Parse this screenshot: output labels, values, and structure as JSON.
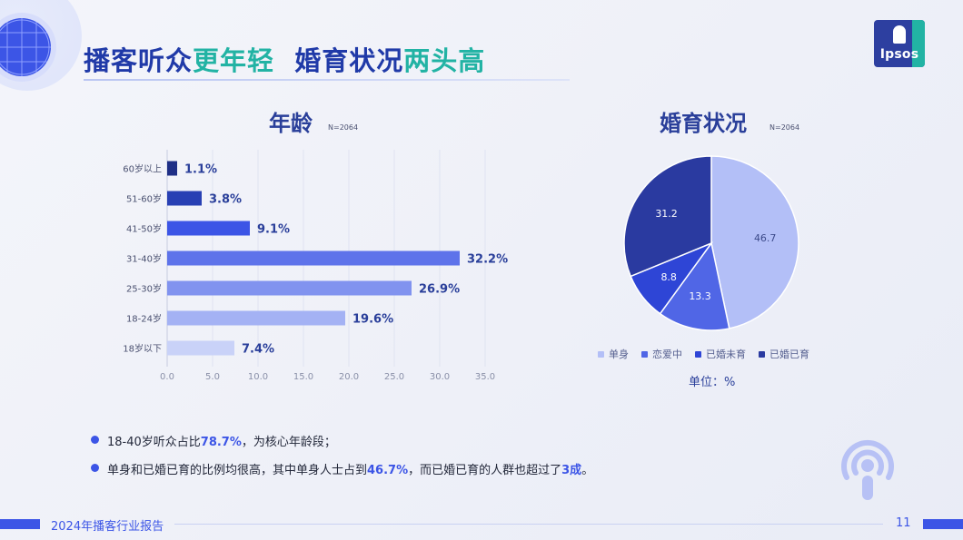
{
  "slide": {
    "title_parts": [
      "播客听众",
      "更年轻",
      "  婚育状况",
      "两头高"
    ],
    "footer": "2024年播客行业报告",
    "page_number": "11",
    "logo_text": "Ipsos",
    "accent_color": "#3c55e6",
    "highlight_color": "#22b3a4"
  },
  "age_chart": {
    "title": "年龄",
    "note": "N=2064"
  },
  "marital_chart": {
    "title": "婚育状况",
    "note": "N=2064",
    "unit": "单位：%"
  },
  "chart_data": [
    {
      "type": "bar",
      "orientation": "horizontal",
      "title": "年龄",
      "categories": [
        "60岁以上",
        "51-60岁",
        "41-50岁",
        "31-40岁",
        "25-30岁",
        "18-24岁",
        "18岁以下"
      ],
      "values": [
        1.1,
        3.8,
        9.1,
        32.2,
        26.9,
        19.6,
        7.4
      ],
      "value_labels": [
        "1.1%",
        "3.8%",
        "9.1%",
        "32.2%",
        "26.9%",
        "19.6%",
        "7.4%"
      ],
      "colors": [
        "#1f2f86",
        "#2840b4",
        "#3c55e6",
        "#5e73ea",
        "#8193ef",
        "#a4b2f4",
        "#c9d2f8"
      ],
      "xlim": [
        0,
        35
      ],
      "xticks": [
        "0.0",
        "5.0",
        "10.0",
        "15.0",
        "20.0",
        "25.0",
        "30.0",
        "35.0"
      ],
      "grid": true
    },
    {
      "type": "pie",
      "title": "婚育状况",
      "labels": [
        "单身",
        "恋爱中",
        "已婚未育",
        "已婚已育"
      ],
      "values": [
        46.7,
        13.3,
        8.8,
        31.2
      ],
      "value_labels": [
        "46.7",
        "13.3",
        "8.8",
        "31.2"
      ],
      "colors": [
        "#b3bff7",
        "#5066e6",
        "#2e45d6",
        "#2a3aa0"
      ],
      "label_colors": [
        "#3c4a8a",
        "#ffffff",
        "#ffffff",
        "#ffffff"
      ],
      "legend_position": "bottom"
    }
  ],
  "bullets": [
    {
      "pre": "18-40岁听众占比",
      "em": "78.7%",
      "mid": "，为核心年龄段；",
      "em2": "",
      "post": ""
    },
    {
      "pre": "单身和已婚已育的比例均很高，其中单身人士占到",
      "em": "46.7%",
      "mid": "，而已婚已育的人群也超过了",
      "em2": "3成",
      "post": "。"
    }
  ]
}
